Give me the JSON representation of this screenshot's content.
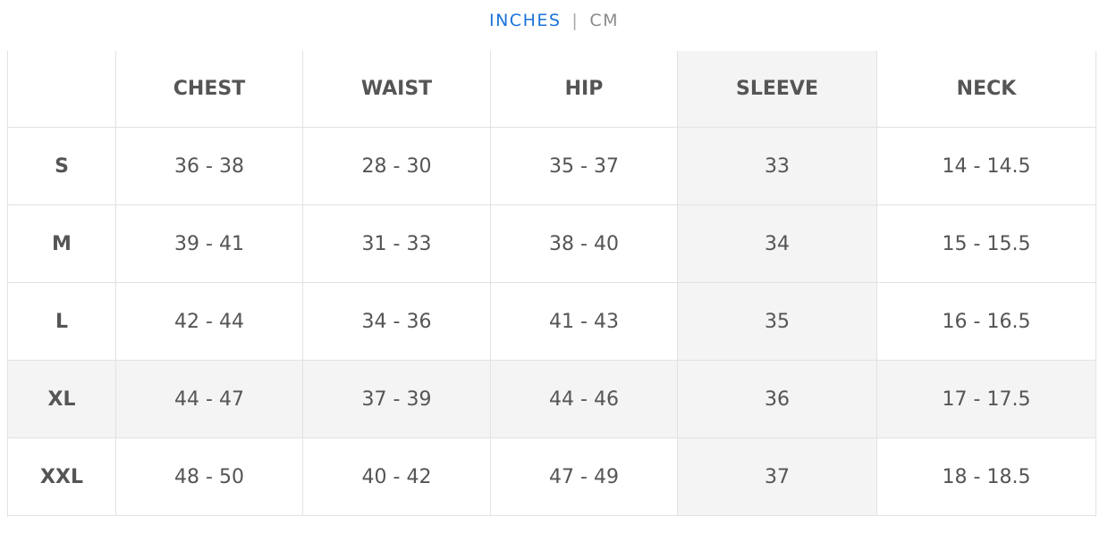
{
  "units": {
    "active": "INCHES",
    "separator": "|",
    "other": "CM"
  },
  "table": {
    "columns": [
      "CHEST",
      "WAIST",
      "HIP",
      "SLEEVE",
      "NECK"
    ],
    "rows": [
      [
        "S",
        "36 - 38",
        "28 - 30",
        "35 - 37",
        "33",
        "14 - 14.5"
      ],
      [
        "M",
        "39 - 41",
        "31 - 33",
        "38 - 40",
        "34",
        "15 - 15.5"
      ],
      [
        "L",
        "42 - 44",
        "34 - 36",
        "41 - 43",
        "35",
        "16 - 16.5"
      ],
      [
        "XL",
        "44 - 47",
        "37 - 39",
        "44 - 46",
        "36",
        "17 - 17.5"
      ],
      [
        "XXL",
        "48 - 50",
        "40 - 42",
        "47 - 49",
        "37",
        "18 - 18.5"
      ]
    ]
  }
}
